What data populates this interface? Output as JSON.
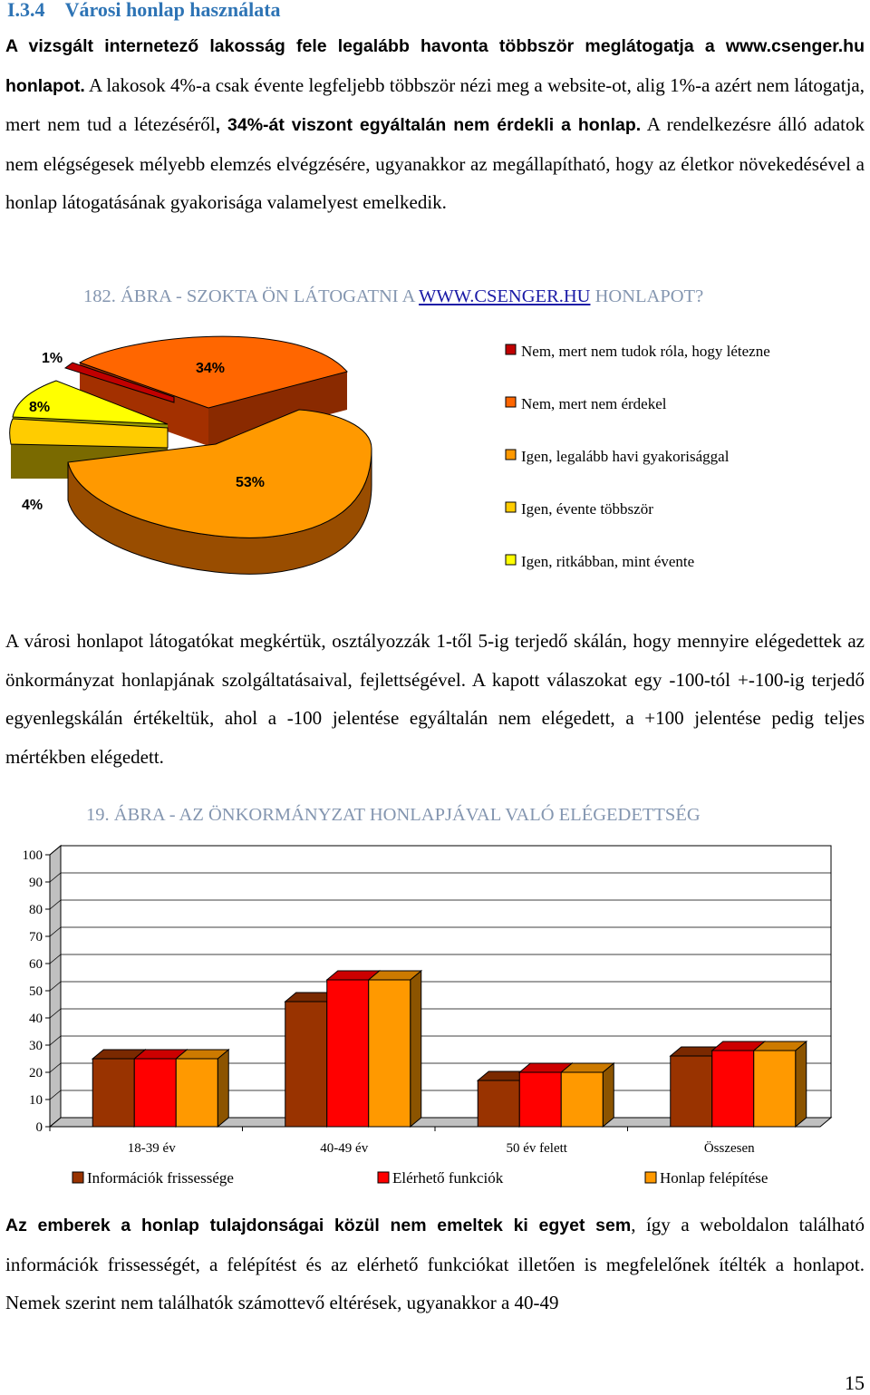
{
  "section": {
    "number": "I.3.4",
    "title": "Városi honlap használata"
  },
  "para1": {
    "b1": "A vizsgált internetező lakosság fele legalább havonta többször meglátogatja a www.csenger.hu honlapot.",
    "t1": " A lakosok 4%-a csak évente legfeljebb többször nézi meg a website-ot, alig 1%-a azért nem látogatja, mert nem tud a létezéséről",
    "b2": ", 34%-át viszont egyáltalán nem érdekli a honlap.",
    "t2": " A rendelkezésre álló adatok nem elégségesek mélyebb elemzés elvégzésére, ugyanakkor az megállapítható, hogy az életkor növekedésével a honlap látogatásának gyakorisága valamelyest emelkedik."
  },
  "caption1": {
    "pre": "182. ÁBRA - SZOKTA ÖN LÁTOGATNI A ",
    "link": "WWW.CSENGER.HU",
    "post": " HONLAPOT?"
  },
  "pie_labels": {
    "s1": "1%",
    "s2": "34%",
    "s3": "8%",
    "s4": "53%",
    "s5": "4%"
  },
  "legend1": [
    "Nem, mert nem tudok róla, hogy létezne",
    "Nem, mert nem érdekel",
    "Igen, legalább havi gyakorisággal",
    "Igen, évente többször",
    "Igen, ritkábban, mint évente"
  ],
  "para2": "A városi honlapot látogatókat megkértük, osztályozzák 1-től 5-ig terjedő skálán, hogy mennyire elégedettek az önkormányzat honlapjának szolgáltatásaival, fejlettségével. A kapott válaszokat egy -100-tól +-100-ig terjedő egyenlegskálán értékeltük, ahol a -100 jelentése egyáltalán nem elégedett, a +100 jelentése pedig teljes mértékben elégedett.",
  "caption2": "19. ÁBRA - AZ ÖNKORMÁNYZAT HONLAPJÁVAL VALÓ ELÉGEDETTSÉG",
  "chart_data": [
    {
      "type": "pie",
      "title": "182. ÁBRA - SZOKTA ÖN LÁTOGATNI A WWW.CSENGER.HU HONLAPOT?",
      "slices": [
        {
          "name": "Nem, mert nem tudok róla, hogy létezne",
          "value": 1,
          "color": "#c00000"
        },
        {
          "name": "Nem, mert nem érdekel",
          "value": 34,
          "color": "#ff6600"
        },
        {
          "name": "Igen, legalább havi gyakorisággal",
          "value": 53,
          "color": "#ff9900"
        },
        {
          "name": "Igen, évente többször",
          "value": 4,
          "color": "#ffcc00"
        },
        {
          "name": "Igen, ritkábban, mint évente",
          "value": 8,
          "color": "#ffff00"
        }
      ],
      "legend": "right"
    },
    {
      "type": "bar",
      "title": "19. ÁBRA - AZ ÖNKORMÁNYZAT HONLAPJÁVAL VALÓ ELÉGEDETTSÉG",
      "categories": [
        "18-39 év",
        "40-49 év",
        "50 év felett",
        "Összesen"
      ],
      "series": [
        {
          "name": "Információk frissessége",
          "values": [
            25,
            46,
            17,
            26
          ],
          "color": "#993300"
        },
        {
          "name": "Elérhető funkciók",
          "values": [
            25,
            54,
            20,
            28
          ],
          "color": "#ff0000"
        },
        {
          "name": "Honlap felépítése",
          "values": [
            25,
            54,
            20,
            28
          ],
          "color": "#ff9900"
        }
      ],
      "ylim": [
        0,
        100
      ],
      "yticks": [
        "0",
        "10",
        "20",
        "30",
        "40",
        "50",
        "60",
        "70",
        "80",
        "90",
        "100"
      ],
      "legend": "bottom",
      "grid": true
    }
  ],
  "para3": {
    "b": "Az emberek a honlap tulajdonságai közül nem emeltek ki egyet sem",
    "t": ", így a weboldalon található információk frissességét, a felépítést és az elérhető funkciókat illetően is megfelelőnek ítélték a honlapot. Nemek szerint nem találhatók számottevő eltérések, ugyanakkor a 40-49"
  },
  "page_number": "15"
}
